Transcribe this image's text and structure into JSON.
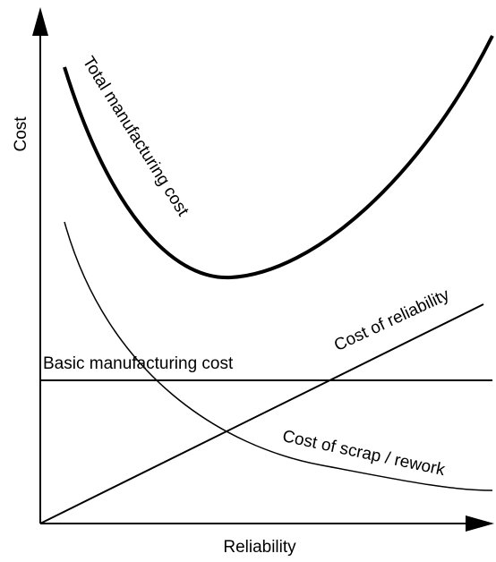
{
  "y_axis_label": "Cost",
  "x_axis_label": "Reliability",
  "curves": [
    {
      "label": "Total manufacturing cost"
    },
    {
      "label": "Basic manufacturing cost"
    },
    {
      "label": "Cost of reliability"
    },
    {
      "label": "Cost of scrap / rework"
    }
  ]
}
